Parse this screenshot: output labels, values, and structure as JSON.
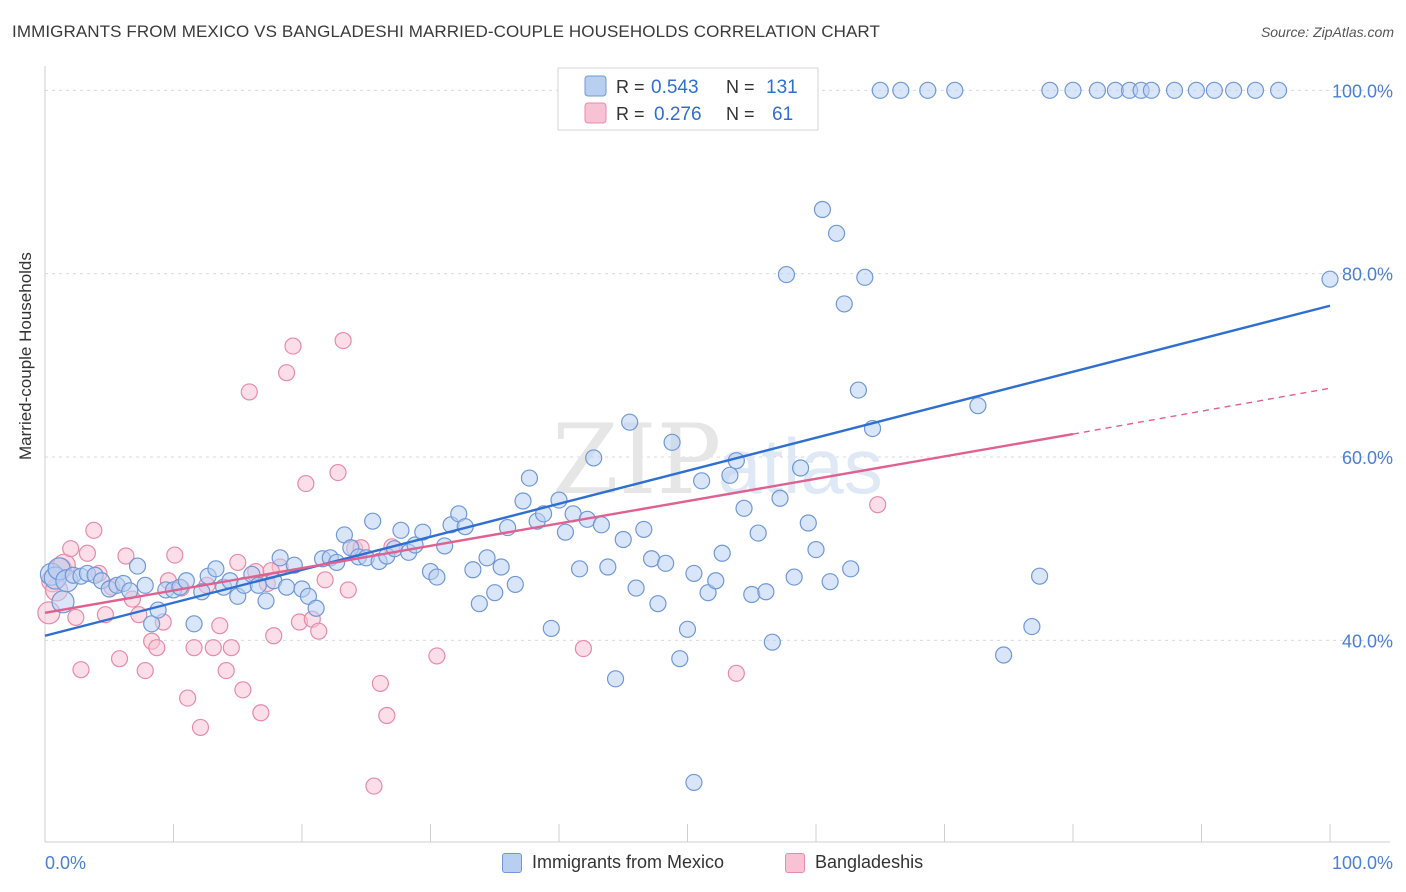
{
  "header": {
    "title": "IMMIGRANTS FROM MEXICO VS BANGLADESHI MARRIED-COUPLE HOUSEHOLDS CORRELATION CHART",
    "source": "Source: ZipAtlas.com"
  },
  "watermark": {
    "zip": "ZIP",
    "atlas": "atlas"
  },
  "colors": {
    "blue_fill": "#b9cff2",
    "blue_stroke": "#6f98d6",
    "blue_line": "#2f6fd0",
    "pink_fill": "#f7c3d4",
    "pink_stroke": "#e88aa8",
    "pink_line": "#e0608f",
    "tick_text": "#4a7fd4",
    "grid": "#d9d9d9"
  },
  "legend_top": {
    "rows": [
      {
        "r_label": "R =",
        "r_value": "0.543",
        "n_label": "N =",
        "n_value": "131"
      },
      {
        "r_label": "R =",
        "r_value": "0.276",
        "n_label": "N =",
        "n_value": "61"
      }
    ]
  },
  "legend_bottom": {
    "items": [
      "Immigrants from Mexico",
      "Bangladeshis"
    ]
  },
  "chart_data": {
    "type": "scatter",
    "title": "IMMIGRANTS FROM MEXICO VS BANGLADESHI MARRIED-COUPLE HOUSEHOLDS CORRELATION CHART",
    "xlabel": "",
    "ylabel": "Married-couple Households",
    "xlim": [
      0,
      100
    ],
    "ylim": [
      18,
      102
    ],
    "x_tick_labels": [
      "0.0%",
      "100.0%"
    ],
    "y_ticks": [
      40,
      60,
      80,
      100
    ],
    "y_tick_labels": [
      "40.0%",
      "60.0%",
      "80.0%",
      "100.0%"
    ],
    "grid": true,
    "legend_position": "top-center",
    "series": [
      {
        "name": "Immigrants from Mexico",
        "r": 0.543,
        "n": 131,
        "trend": {
          "x0": 0,
          "y0": 40.5,
          "x1": 100,
          "y1": 76.5
        },
        "points": [
          [
            0.5,
            47.2
          ],
          [
            0.8,
            46.8
          ],
          [
            1.1,
            47.8
          ],
          [
            1.4,
            44.2
          ],
          [
            1.7,
            46.5
          ],
          [
            2.2,
            47.1
          ],
          [
            2.8,
            47.0
          ],
          [
            3.3,
            47.3
          ],
          [
            3.9,
            47.1
          ],
          [
            4.4,
            46.5
          ],
          [
            5.0,
            45.6
          ],
          [
            5.6,
            46.0
          ],
          [
            6.1,
            46.2
          ],
          [
            6.6,
            45.4
          ],
          [
            7.2,
            48.1
          ],
          [
            7.8,
            46.0
          ],
          [
            8.3,
            41.8
          ],
          [
            8.8,
            43.3
          ],
          [
            9.4,
            45.5
          ],
          [
            10.0,
            45.5
          ],
          [
            10.5,
            45.8
          ],
          [
            11.0,
            46.5
          ],
          [
            11.6,
            41.8
          ],
          [
            12.2,
            45.3
          ],
          [
            12.7,
            47.0
          ],
          [
            13.3,
            47.8
          ],
          [
            13.9,
            45.8
          ],
          [
            14.4,
            46.5
          ],
          [
            15.0,
            44.8
          ],
          [
            15.5,
            46.0
          ],
          [
            16.1,
            47.2
          ],
          [
            16.6,
            46.0
          ],
          [
            17.2,
            44.3
          ],
          [
            17.8,
            46.5
          ],
          [
            18.3,
            49.0
          ],
          [
            18.8,
            45.8
          ],
          [
            19.4,
            48.2
          ],
          [
            20.0,
            45.6
          ],
          [
            20.5,
            44.8
          ],
          [
            21.1,
            43.5
          ],
          [
            21.6,
            48.9
          ],
          [
            22.2,
            49.0
          ],
          [
            22.7,
            48.5
          ],
          [
            23.3,
            51.5
          ],
          [
            23.8,
            50.1
          ],
          [
            24.4,
            49.1
          ],
          [
            25.0,
            49.0
          ],
          [
            25.5,
            53.0
          ],
          [
            26.0,
            48.6
          ],
          [
            26.6,
            49.2
          ],
          [
            27.2,
            50.0
          ],
          [
            27.7,
            52.0
          ],
          [
            28.3,
            49.6
          ],
          [
            28.8,
            50.4
          ],
          [
            29.4,
            51.8
          ],
          [
            30.0,
            47.5
          ],
          [
            30.5,
            46.9
          ],
          [
            31.1,
            50.3
          ],
          [
            31.6,
            52.6
          ],
          [
            32.2,
            53.8
          ],
          [
            32.7,
            52.4
          ],
          [
            33.3,
            47.7
          ],
          [
            33.8,
            44.0
          ],
          [
            34.4,
            49.0
          ],
          [
            35.0,
            45.2
          ],
          [
            35.5,
            48.0
          ],
          [
            36.0,
            52.3
          ],
          [
            36.6,
            46.1
          ],
          [
            37.2,
            55.2
          ],
          [
            37.7,
            57.7
          ],
          [
            38.3,
            53.0
          ],
          [
            38.8,
            53.8
          ],
          [
            39.4,
            41.3
          ],
          [
            40.0,
            55.3
          ],
          [
            40.5,
            51.8
          ],
          [
            41.1,
            53.8
          ],
          [
            41.6,
            47.8
          ],
          [
            42.2,
            53.2
          ],
          [
            42.7,
            59.9
          ],
          [
            43.3,
            52.6
          ],
          [
            43.8,
            48.0
          ],
          [
            44.4,
            35.8
          ],
          [
            45.0,
            51.0
          ],
          [
            45.5,
            63.8
          ],
          [
            46.0,
            45.7
          ],
          [
            46.6,
            52.1
          ],
          [
            47.2,
            48.9
          ],
          [
            47.7,
            44.0
          ],
          [
            48.3,
            48.4
          ],
          [
            48.8,
            61.6
          ],
          [
            49.4,
            38.0
          ],
          [
            50.0,
            41.2
          ],
          [
            50.5,
            47.3
          ],
          [
            51.1,
            57.4
          ],
          [
            51.6,
            45.2
          ],
          [
            52.2,
            46.5
          ],
          [
            52.7,
            49.5
          ],
          [
            53.3,
            58.0
          ],
          [
            53.8,
            59.6
          ],
          [
            54.4,
            54.4
          ],
          [
            55.0,
            45.0
          ],
          [
            55.5,
            51.7
          ],
          [
            56.1,
            45.3
          ],
          [
            56.6,
            39.8
          ],
          [
            57.2,
            55.5
          ],
          [
            57.7,
            79.9
          ],
          [
            58.3,
            46.9
          ],
          [
            58.8,
            58.8
          ],
          [
            59.4,
            52.8
          ],
          [
            60.0,
            49.9
          ],
          [
            60.5,
            87.0
          ],
          [
            61.1,
            46.4
          ],
          [
            61.6,
            84.4
          ],
          [
            62.2,
            76.7
          ],
          [
            62.7,
            47.8
          ],
          [
            63.3,
            67.3
          ],
          [
            63.8,
            79.6
          ],
          [
            64.4,
            63.1
          ],
          [
            65.0,
            100.0
          ],
          [
            66.6,
            100.0
          ],
          [
            68.7,
            100.0
          ],
          [
            70.8,
            100.0
          ],
          [
            72.6,
            65.6
          ],
          [
            74.6,
            38.4
          ],
          [
            76.8,
            41.5
          ],
          [
            77.4,
            47.0
          ],
          [
            78.2,
            100.0
          ],
          [
            80.0,
            100.0
          ],
          [
            81.9,
            100.0
          ],
          [
            83.3,
            100.0
          ],
          [
            84.4,
            100.0
          ],
          [
            85.3,
            100.0
          ],
          [
            86.1,
            100.0
          ],
          [
            87.9,
            100.0
          ],
          [
            89.6,
            100.0
          ],
          [
            91.0,
            100.0
          ],
          [
            92.5,
            100.0
          ],
          [
            94.2,
            100.0
          ],
          [
            96.0,
            100.0
          ],
          [
            100.0,
            79.4
          ],
          [
            50.5,
            24.5
          ]
        ]
      },
      {
        "name": "Bangladeshis",
        "r": 0.276,
        "n": 61,
        "trend": {
          "x0": 0,
          "y0": 43.0,
          "x1": 80,
          "y1": 62.5
        },
        "trend_dashed": {
          "x0": 80,
          "y0": 62.5,
          "x1": 100,
          "y1": 67.5
        },
        "points": [
          [
            0.3,
            43.0
          ],
          [
            0.6,
            46.5
          ],
          [
            0.9,
            45.5
          ],
          [
            1.2,
            47.8
          ],
          [
            1.5,
            48.2
          ],
          [
            2.0,
            50.0
          ],
          [
            2.4,
            42.5
          ],
          [
            2.8,
            36.8
          ],
          [
            3.3,
            49.5
          ],
          [
            3.8,
            52.0
          ],
          [
            4.2,
            47.3
          ],
          [
            4.7,
            42.8
          ],
          [
            5.2,
            45.8
          ],
          [
            5.8,
            38.0
          ],
          [
            6.3,
            49.2
          ],
          [
            6.8,
            44.5
          ],
          [
            7.3,
            42.8
          ],
          [
            7.8,
            36.7
          ],
          [
            8.3,
            39.9
          ],
          [
            8.7,
            39.2
          ],
          [
            9.2,
            42.0
          ],
          [
            9.6,
            46.5
          ],
          [
            10.1,
            49.3
          ],
          [
            10.6,
            45.7
          ],
          [
            11.1,
            33.7
          ],
          [
            11.6,
            39.2
          ],
          [
            12.1,
            30.5
          ],
          [
            12.6,
            46.0
          ],
          [
            13.1,
            39.2
          ],
          [
            13.6,
            41.6
          ],
          [
            14.1,
            36.7
          ],
          [
            14.5,
            39.2
          ],
          [
            15.0,
            48.5
          ],
          [
            15.4,
            34.6
          ],
          [
            15.9,
            67.1
          ],
          [
            16.4,
            47.5
          ],
          [
            16.8,
            32.1
          ],
          [
            17.3,
            46.2
          ],
          [
            17.8,
            40.5
          ],
          [
            18.3,
            48.0
          ],
          [
            18.8,
            69.2
          ],
          [
            19.3,
            72.1
          ],
          [
            19.8,
            42.0
          ],
          [
            20.3,
            57.1
          ],
          [
            20.8,
            42.3
          ],
          [
            21.3,
            41.0
          ],
          [
            21.8,
            46.6
          ],
          [
            22.8,
            58.3
          ],
          [
            23.2,
            72.7
          ],
          [
            23.6,
            45.5
          ],
          [
            24.1,
            50.0
          ],
          [
            24.6,
            50.1
          ],
          [
            25.6,
            24.1
          ],
          [
            26.1,
            35.3
          ],
          [
            26.6,
            31.8
          ],
          [
            27.0,
            50.2
          ],
          [
            30.5,
            38.3
          ],
          [
            41.9,
            39.1
          ],
          [
            53.8,
            36.4
          ],
          [
            64.8,
            54.8
          ],
          [
            17.6,
            47.6
          ]
        ]
      }
    ]
  }
}
